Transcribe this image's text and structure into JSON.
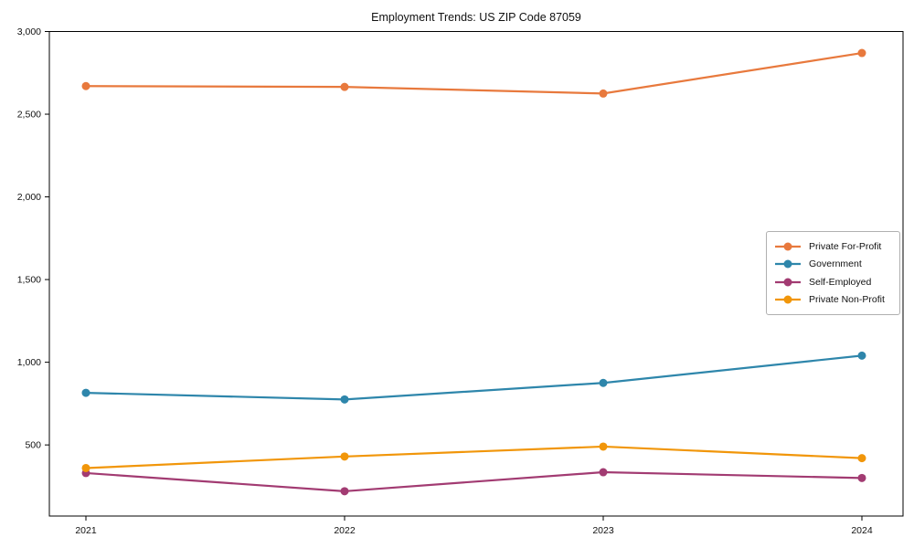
{
  "chart_data": {
    "type": "line",
    "title": "Employment Trends: US ZIP Code 87059",
    "x": [
      2021,
      2022,
      2023,
      2024
    ],
    "series": [
      {
        "name": "Private For-Profit",
        "color": "#E8793D",
        "values": [
          2670,
          2665,
          2625,
          2870
        ]
      },
      {
        "name": "Government",
        "color": "#2E86AB",
        "values": [
          815,
          775,
          875,
          1040
        ]
      },
      {
        "name": "Self-Employed",
        "color": "#A23B72",
        "values": [
          330,
          220,
          335,
          300
        ]
      },
      {
        "name": "Private Non-Profit",
        "color": "#F1960A",
        "values": [
          360,
          430,
          490,
          420
        ]
      }
    ],
    "xlabel": "",
    "ylabel": "",
    "ylim": [
      70,
      3000
    ],
    "yticks": [
      500,
      1000,
      1500,
      2000,
      2500,
      3000
    ],
    "ytick_labels": [
      "500",
      "1,000",
      "1,500",
      "2,000",
      "2,500",
      "3,000"
    ],
    "xtick_labels": [
      "2021",
      "2022",
      "2023",
      "2024"
    ],
    "grid": false,
    "legend_position": "center-right",
    "axis_color": "#000000",
    "background_color": "#ffffff"
  }
}
